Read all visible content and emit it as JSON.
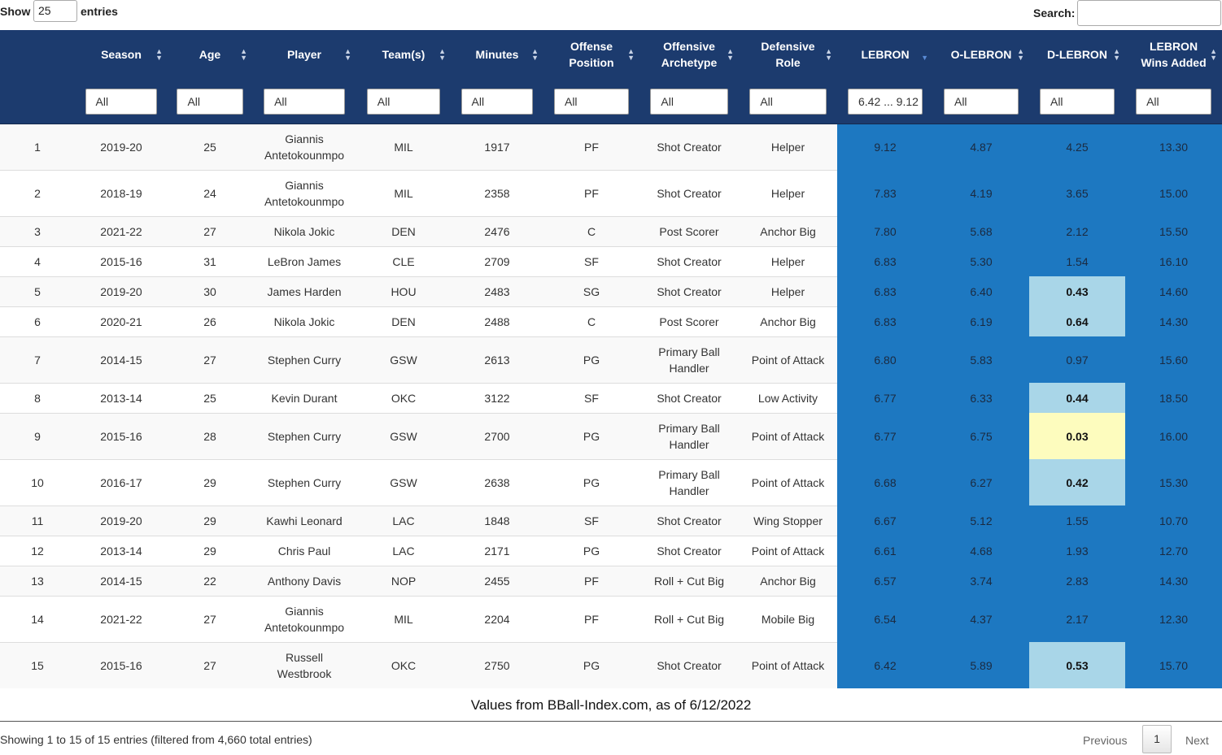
{
  "controls": {
    "show_label": "Show",
    "page_length": "25",
    "entries_label": "entries",
    "search_label": "Search:"
  },
  "table": {
    "headers": [
      "Season",
      "Age",
      "Player",
      "Team(s)",
      "Minutes",
      "Offense Position",
      "Offensive Archetype",
      "Defensive Role",
      "LEBRON",
      "O-LEBRON",
      "D-LEBRON",
      "LEBRON Wins Added"
    ],
    "filters": [
      "All",
      "All",
      "All",
      "All",
      "All",
      "All",
      "All",
      "All",
      "6.42 ... 9.12",
      "All",
      "All",
      "All"
    ],
    "rows": [
      [
        "1",
        "2019-20",
        "25",
        "Giannis Antetokounmpo",
        "MIL",
        "1917",
        "PF",
        "Shot Creator",
        "Helper",
        "9.12",
        "4.87",
        "4.25",
        "13.30"
      ],
      [
        "2",
        "2018-19",
        "24",
        "Giannis Antetokounmpo",
        "MIL",
        "2358",
        "PF",
        "Shot Creator",
        "Helper",
        "7.83",
        "4.19",
        "3.65",
        "15.00"
      ],
      [
        "3",
        "2021-22",
        "27",
        "Nikola Jokic",
        "DEN",
        "2476",
        "C",
        "Post Scorer",
        "Anchor Big",
        "7.80",
        "5.68",
        "2.12",
        "15.50"
      ],
      [
        "4",
        "2015-16",
        "31",
        "LeBron James",
        "CLE",
        "2709",
        "SF",
        "Shot Creator",
        "Helper",
        "6.83",
        "5.30",
        "1.54",
        "16.10"
      ],
      [
        "5",
        "2019-20",
        "30",
        "James Harden",
        "HOU",
        "2483",
        "SG",
        "Shot Creator",
        "Helper",
        "6.83",
        "6.40",
        "0.43",
        "14.60"
      ],
      [
        "6",
        "2020-21",
        "26",
        "Nikola Jokic",
        "DEN",
        "2488",
        "C",
        "Post Scorer",
        "Anchor Big",
        "6.83",
        "6.19",
        "0.64",
        "14.30"
      ],
      [
        "7",
        "2014-15",
        "27",
        "Stephen Curry",
        "GSW",
        "2613",
        "PG",
        "Primary Ball Handler",
        "Point of Attack",
        "6.80",
        "5.83",
        "0.97",
        "15.60"
      ],
      [
        "8",
        "2013-14",
        "25",
        "Kevin Durant",
        "OKC",
        "3122",
        "SF",
        "Shot Creator",
        "Low Activity",
        "6.77",
        "6.33",
        "0.44",
        "18.50"
      ],
      [
        "9",
        "2015-16",
        "28",
        "Stephen Curry",
        "GSW",
        "2700",
        "PG",
        "Primary Ball Handler",
        "Point of Attack",
        "6.77",
        "6.75",
        "0.03",
        "16.00"
      ],
      [
        "10",
        "2016-17",
        "29",
        "Stephen Curry",
        "GSW",
        "2638",
        "PG",
        "Primary Ball Handler",
        "Point of Attack",
        "6.68",
        "6.27",
        "0.42",
        "15.30"
      ],
      [
        "11",
        "2019-20",
        "29",
        "Kawhi Leonard",
        "LAC",
        "1848",
        "SF",
        "Shot Creator",
        "Wing Stopper",
        "6.67",
        "5.12",
        "1.55",
        "10.70"
      ],
      [
        "12",
        "2013-14",
        "29",
        "Chris Paul",
        "LAC",
        "2171",
        "PG",
        "Shot Creator",
        "Point of Attack",
        "6.61",
        "4.68",
        "1.93",
        "12.70"
      ],
      [
        "13",
        "2014-15",
        "22",
        "Anthony Davis",
        "NOP",
        "2455",
        "PF",
        "Roll + Cut Big",
        "Anchor Big",
        "6.57",
        "3.74",
        "2.83",
        "14.30"
      ],
      [
        "14",
        "2021-22",
        "27",
        "Giannis Antetokounmpo",
        "MIL",
        "2204",
        "PF",
        "Roll + Cut Big",
        "Mobile Big",
        "6.54",
        "4.37",
        "2.17",
        "12.30"
      ],
      [
        "15",
        "2015-16",
        "27",
        "Russell Westbrook",
        "OKC",
        "2750",
        "PG",
        "Shot Creator",
        "Point of Attack",
        "6.42",
        "5.89",
        "0.53",
        "15.70"
      ]
    ]
  },
  "footer": {
    "note": "Values from BBall-Index.com, as of 6/12/2022",
    "info": "Showing 1 to 15 of 15 entries (filtered from 4,660 total entries)",
    "previous": "Previous",
    "page": "1",
    "next": "Next"
  }
}
